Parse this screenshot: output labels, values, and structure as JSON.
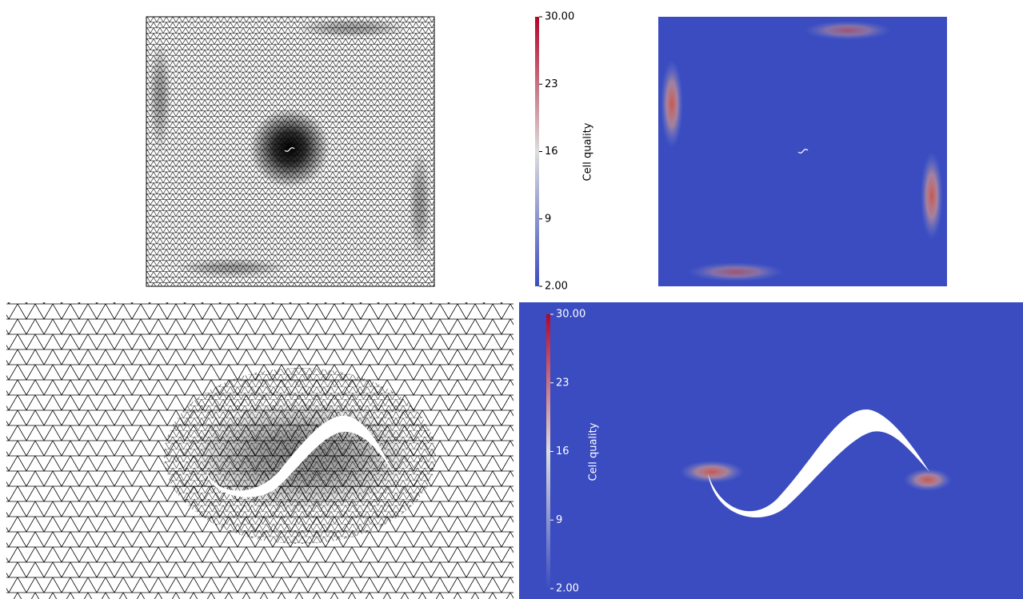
{
  "colorbars": [
    {
      "title": "Cell quality",
      "range": [
        2,
        30
      ],
      "ticks": [
        {
          "value": 2,
          "label": "2.00"
        },
        9,
        16,
        23,
        {
          "value": 30,
          "label": "30.00"
        }
      ]
    },
    {
      "title": "Cell quality",
      "range": [
        2,
        30
      ],
      "ticks": [
        {
          "value": 2,
          "label": "2.00"
        },
        9,
        16,
        23,
        {
          "value": 30,
          "label": "30.00"
        }
      ]
    }
  ]
}
